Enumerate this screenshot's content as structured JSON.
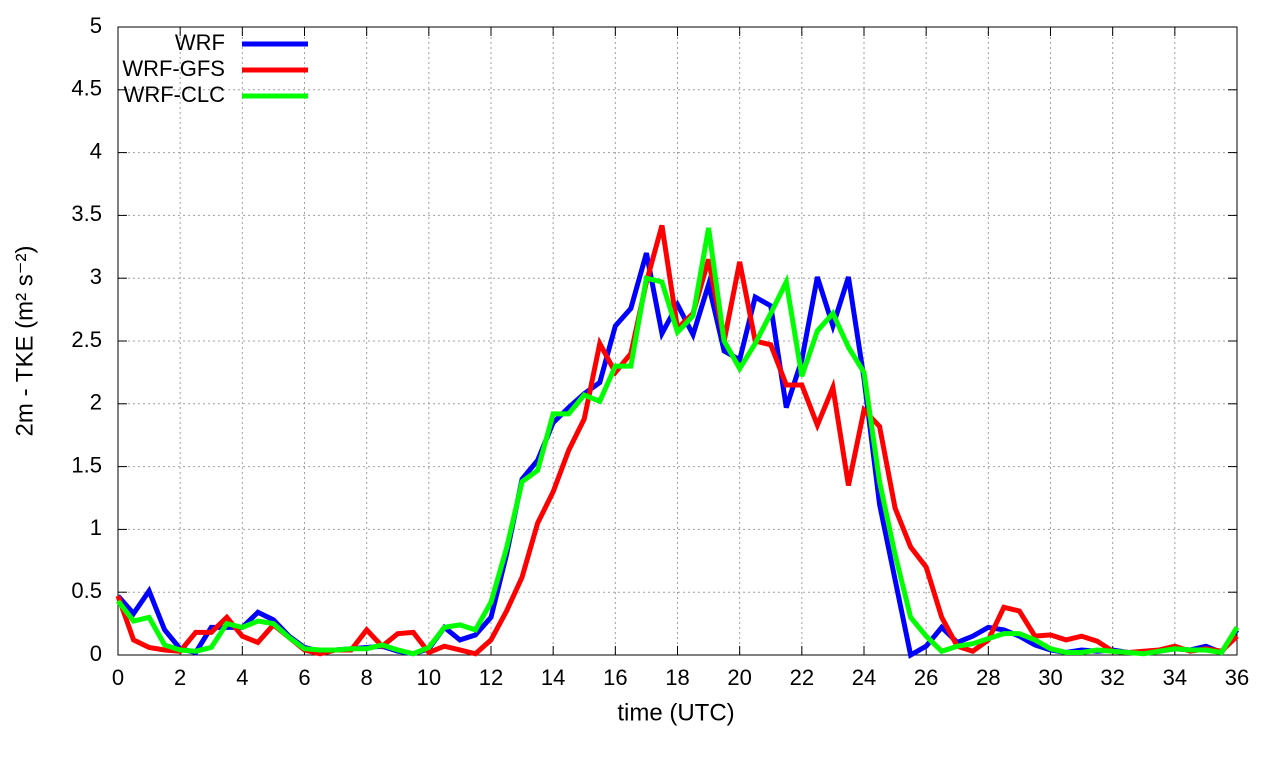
{
  "chart_data": {
    "type": "line",
    "xlabel": "time (UTC)",
    "ylabel": "2m - TKE (m² s⁻²)",
    "x": [
      0,
      0.5,
      1,
      1.5,
      2,
      2.5,
      3,
      3.5,
      4,
      4.5,
      5,
      5.5,
      6,
      6.5,
      7,
      7.5,
      8,
      8.5,
      9,
      9.5,
      10,
      10.5,
      11,
      11.5,
      12,
      12.5,
      13,
      13.5,
      14,
      14.5,
      15,
      15.5,
      16,
      16.5,
      17,
      17.5,
      18,
      18.5,
      19,
      19.5,
      20,
      20.5,
      21,
      21.5,
      22,
      22.5,
      23,
      23.5,
      24,
      24.5,
      25,
      25.5,
      26,
      26.5,
      27,
      27.5,
      28,
      28.5,
      29,
      29.5,
      30,
      30.5,
      31,
      31.5,
      32,
      32.5,
      33,
      33.5,
      34,
      34.5,
      35,
      35.5,
      36
    ],
    "series": [
      {
        "name": "WRF",
        "color": "#0000ff",
        "values": [
          0.47,
          0.33,
          0.51,
          0.2,
          0.05,
          0.02,
          0.22,
          0.22,
          0.22,
          0.34,
          0.28,
          0.15,
          0.06,
          0.03,
          0.04,
          0.05,
          0.06,
          0.07,
          0.03,
          0.01,
          0.05,
          0.22,
          0.12,
          0.16,
          0.3,
          0.8,
          1.4,
          1.55,
          1.85,
          1.97,
          2.08,
          2.17,
          2.62,
          2.76,
          3.2,
          2.56,
          2.79,
          2.55,
          2.95,
          2.42,
          2.35,
          2.85,
          2.78,
          1.97,
          2.35,
          3.01,
          2.62,
          3.01,
          2.2,
          1.2,
          0.6,
          0.0,
          0.07,
          0.22,
          0.1,
          0.15,
          0.22,
          0.2,
          0.15,
          0.08,
          0.04,
          0.02,
          0.04,
          0.03,
          0.04,
          0.02,
          0.02,
          0.03,
          0.05,
          0.04,
          0.07,
          0.02,
          0.2
        ]
      },
      {
        "name": "WRF-GFS",
        "color": "#ff0000",
        "values": [
          0.47,
          0.12,
          0.06,
          0.04,
          0.03,
          0.18,
          0.18,
          0.3,
          0.15,
          0.1,
          0.24,
          0.14,
          0.04,
          0.01,
          0.04,
          0.04,
          0.2,
          0.07,
          0.17,
          0.18,
          0.02,
          0.07,
          0.04,
          0.01,
          0.12,
          0.35,
          0.62,
          1.05,
          1.3,
          1.63,
          1.88,
          2.48,
          2.25,
          2.4,
          2.97,
          3.42,
          2.6,
          2.72,
          3.15,
          2.5,
          3.13,
          2.5,
          2.47,
          2.15,
          2.15,
          1.83,
          2.13,
          1.35,
          1.95,
          1.82,
          1.17,
          0.86,
          0.7,
          0.3,
          0.07,
          0.03,
          0.12,
          0.38,
          0.35,
          0.15,
          0.16,
          0.12,
          0.15,
          0.11,
          0.03,
          0.02,
          0.03,
          0.04,
          0.07,
          0.03,
          0.05,
          0.03,
          0.15
        ]
      },
      {
        "name": "WRF-CLC",
        "color": "#00ff00",
        "values": [
          0.43,
          0.27,
          0.3,
          0.08,
          0.04,
          0.03,
          0.06,
          0.25,
          0.22,
          0.27,
          0.25,
          0.14,
          0.05,
          0.04,
          0.04,
          0.05,
          0.05,
          0.08,
          0.04,
          0.01,
          0.06,
          0.22,
          0.24,
          0.2,
          0.42,
          0.85,
          1.38,
          1.47,
          1.92,
          1.92,
          2.07,
          2.02,
          2.3,
          2.3,
          3.0,
          2.97,
          2.57,
          2.7,
          3.4,
          2.5,
          2.28,
          2.48,
          2.72,
          2.97,
          2.22,
          2.58,
          2.72,
          2.45,
          2.25,
          1.38,
          0.8,
          0.3,
          0.15,
          0.03,
          0.07,
          0.09,
          0.13,
          0.17,
          0.17,
          0.12,
          0.05,
          0.02,
          0.02,
          0.04,
          0.03,
          0.02,
          0.01,
          0.03,
          0.05,
          0.04,
          0.04,
          0.02,
          0.22
        ]
      }
    ],
    "xlim": [
      0,
      36
    ],
    "xticks": [
      0,
      2,
      4,
      6,
      8,
      10,
      12,
      14,
      16,
      18,
      20,
      22,
      24,
      26,
      28,
      30,
      32,
      34,
      36
    ],
    "ylim": [
      0,
      5
    ],
    "yticks": [
      0,
      0.5,
      1,
      1.5,
      2,
      2.5,
      3,
      3.5,
      4,
      4.5,
      5
    ],
    "grid": true,
    "legend": "upper left"
  }
}
